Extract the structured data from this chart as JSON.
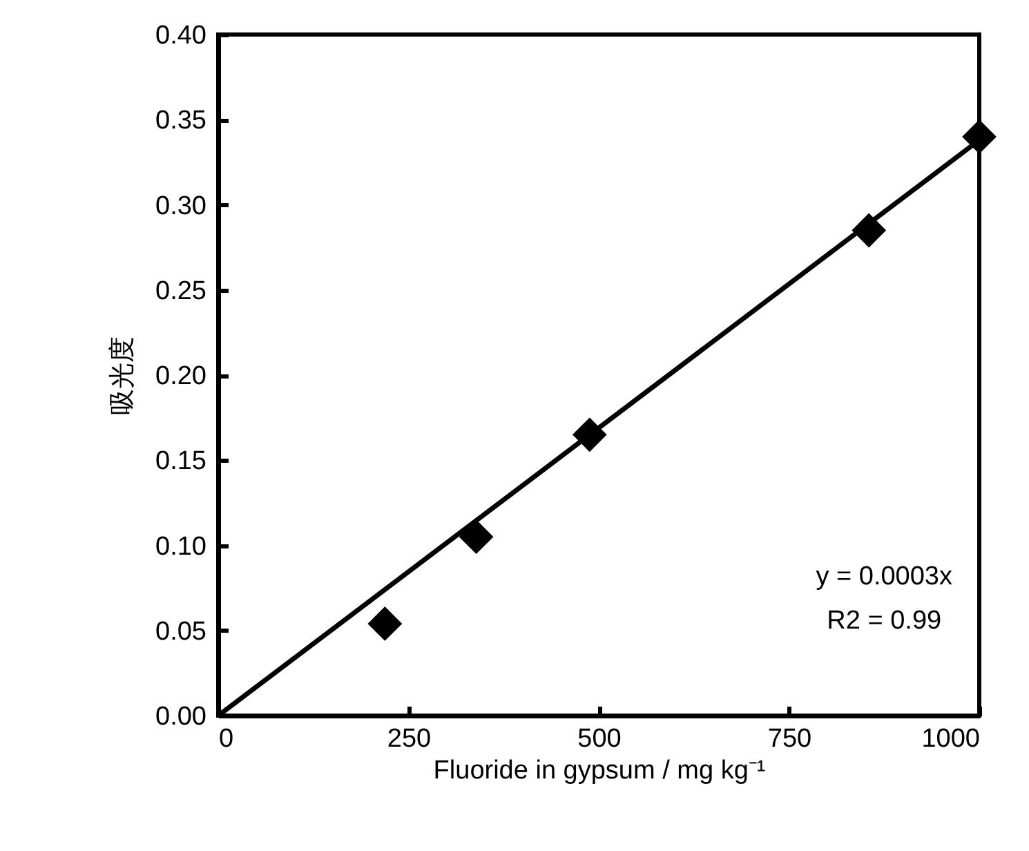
{
  "chart_data": {
    "type": "scatter",
    "xlabel": "Fluoride in gypsum / mg kg⁻¹",
    "ylabel": "吸光度",
    "xlim": [
      0,
      1000
    ],
    "xticks": [
      0,
      250,
      500,
      750,
      1000
    ],
    "ylim": [
      0,
      0.4
    ],
    "yticks": [
      {
        "value": 0,
        "label": "0.00"
      },
      0.05,
      {
        "value": 0.1,
        "label": "0.10"
      },
      0.15,
      {
        "value": 0.2,
        "label": "0.20"
      },
      0.25,
      {
        "value": 0.3,
        "label": "0.30"
      },
      0.35,
      {
        "value": 0.4,
        "label": "0.40"
      }
    ],
    "grid": false,
    "marker": "diamond",
    "series": [
      {
        "color": "#000000",
        "x": [
          219,
          339,
          488,
          855,
          1000
        ],
        "values": [
          0.054,
          0.105,
          0.165,
          0.285,
          0.34
        ]
      },
      {
        "type": "line",
        "color": "#000000",
        "marker": "none",
        "x": [
          0,
          1000
        ],
        "values": [
          0,
          0.338
        ]
      }
    ],
    "annotations": [
      "y = 0.0003x",
      "R2 = 0.99"
    ]
  }
}
